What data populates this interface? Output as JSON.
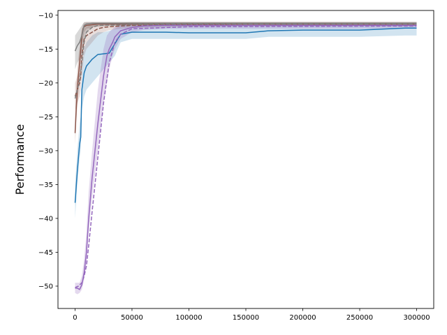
{
  "chart_data": {
    "type": "line",
    "title": "",
    "xlabel": "",
    "ylabel": "Performance",
    "xlim": [
      -15000,
      315000
    ],
    "ylim": [
      -53.3,
      -9.3
    ],
    "xticks": [
      0,
      50000,
      100000,
      150000,
      200000,
      250000,
      300000
    ],
    "xtick_labels": [
      "0",
      "50000",
      "100000",
      "150000",
      "200000",
      "250000",
      "300000"
    ],
    "yticks": [
      -50,
      -45,
      -40,
      -35,
      -30,
      -25,
      -20,
      -15,
      -10
    ],
    "ytick_labels": [
      "−50",
      "−45",
      "−40",
      "−35",
      "−30",
      "−25",
      "−20",
      "−15",
      "−10"
    ],
    "grid": false,
    "legend": "none",
    "series": [
      {
        "color": "#1f77b4",
        "linestyle": "solid",
        "band_opacity": 0.2,
        "x": [
          0,
          2000,
          4000,
          5000,
          6000,
          8000,
          10000,
          15000,
          20000,
          25000,
          30000,
          35000,
          40000,
          50000,
          60000,
          80000,
          100000,
          150000,
          170000,
          200000,
          250000,
          290000,
          300000
        ],
        "y": [
          -37.7,
          -33,
          -29,
          -28,
          -21,
          -18.5,
          -17.5,
          -16.5,
          -15.8,
          -15.7,
          -15.6,
          -14.2,
          -12.8,
          -12.5,
          -12.5,
          -12.5,
          -12.6,
          -12.6,
          -12.3,
          -12.2,
          -12.2,
          -11.9,
          -11.9
        ],
        "lower": [
          -40,
          -35,
          -31,
          -30,
          -24,
          -22,
          -21,
          -20,
          -19,
          -18,
          -17,
          -16,
          -14,
          -13.5,
          -13.5,
          -13.5,
          -13.5,
          -13.5,
          -13.2,
          -13.2,
          -13.2,
          -13,
          -13
        ],
        "upper": [
          -35,
          -30,
          -26,
          -25,
          -18,
          -15,
          -14,
          -13,
          -12.5,
          -12.5,
          -12.3,
          -12,
          -11.5,
          -11.5,
          -11.5,
          -11.5,
          -11.5,
          -11.5,
          -11.4,
          -11.3,
          -11.3,
          -11.2,
          -11.2
        ]
      },
      {
        "color": "#8c564b",
        "linestyle": "solid",
        "band_opacity": 0.25,
        "x": [
          0,
          1000,
          2000,
          3000,
          4000,
          5000,
          6000,
          7000,
          8000,
          10000,
          15000,
          20000,
          30000,
          50000,
          100000,
          150000,
          200000,
          250000,
          300000
        ],
        "y": [
          -27.4,
          -24,
          -21,
          -19,
          -17,
          -15,
          -13,
          -12,
          -11.7,
          -11.5,
          -11.4,
          -11.3,
          -11.3,
          -11.3,
          -11.3,
          -11.3,
          -11.3,
          -11.3,
          -11.3
        ],
        "lower": [
          -29,
          -26,
          -23.5,
          -21.5,
          -19,
          -17,
          -15,
          -13.5,
          -12.5,
          -12,
          -11.8,
          -11.7,
          -11.6,
          -11.6,
          -11.6,
          -11.6,
          -11.6,
          -11.6,
          -11.6
        ],
        "upper": [
          -25,
          -21,
          -18,
          -16,
          -14.5,
          -13,
          -12,
          -11.3,
          -11.1,
          -11,
          -11,
          -11,
          -11,
          -11,
          -11,
          -11,
          -11,
          -11,
          -11
        ]
      },
      {
        "color": "#8c564b",
        "linestyle": "dashed",
        "band_opacity": 0.2,
        "x": [
          0,
          2000,
          4000,
          5000,
          6000,
          8000,
          10000,
          15000,
          20000,
          25000,
          30000,
          40000,
          50000,
          100000,
          150000,
          200000,
          250000,
          300000
        ],
        "y": [
          -22,
          -21,
          -20,
          -19,
          -16,
          -13.5,
          -13,
          -12.5,
          -12,
          -11.8,
          -11.7,
          -11.6,
          -11.5,
          -11.4,
          -11.3,
          -11.3,
          -11.3,
          -11.3
        ],
        "lower": [
          -24,
          -23,
          -22,
          -21,
          -19,
          -16,
          -15,
          -14,
          -13,
          -12.5,
          -12.2,
          -12,
          -11.9,
          -11.7,
          -11.6,
          -11.6,
          -11.6,
          -11.6
        ],
        "upper": [
          -20,
          -19,
          -17.5,
          -16,
          -13.5,
          -12,
          -11.7,
          -11.3,
          -11.2,
          -11.1,
          -11.1,
          -11.1,
          -11,
          -11,
          -11,
          -11,
          -11,
          -11
        ]
      },
      {
        "color": "#7f7f7f",
        "linestyle": "solid",
        "band_opacity": 0.3,
        "x": [
          0,
          2000,
          4000,
          6000,
          8000,
          10000,
          15000,
          20000,
          30000,
          50000,
          100000,
          150000,
          200000,
          250000,
          300000
        ],
        "y": [
          -15.3,
          -14.5,
          -14,
          -13,
          -11.5,
          -11.3,
          -11.2,
          -11.2,
          -11.2,
          -11.2,
          -11.2,
          -11.2,
          -11.2,
          -11.2,
          -11.2
        ],
        "lower": [
          -18,
          -17,
          -16.5,
          -16,
          -14,
          -12.5,
          -11.8,
          -11.6,
          -11.5,
          -11.5,
          -11.5,
          -11.5,
          -11.5,
          -11.5,
          -11.5
        ],
        "upper": [
          -13,
          -12.5,
          -12,
          -11.5,
          -11,
          -11,
          -11,
          -11,
          -11,
          -11,
          -11,
          -11,
          -11,
          -11,
          -11
        ]
      },
      {
        "color": "#7f7f7f",
        "linestyle": "dashed",
        "band_opacity": 0.0,
        "x": [
          0,
          2000,
          4000,
          6000,
          8000,
          10000,
          15000,
          20000,
          50000,
          100000,
          300000
        ],
        "y": [
          -22.3,
          -21,
          -19.5,
          -17,
          -14,
          -12.5,
          -11.8,
          -11.5,
          -11.4,
          -11.3,
          -11.3
        ],
        "lower": [],
        "upper": []
      },
      {
        "color": "#9467bd",
        "linestyle": "solid",
        "band_opacity": 0.25,
        "x": [
          0,
          2000,
          4000,
          6000,
          8000,
          10000,
          12000,
          15000,
          20000,
          25000,
          28000,
          30000,
          33000,
          35000,
          40000,
          50000,
          60000,
          80000,
          100000,
          150000,
          200000,
          250000,
          300000
        ],
        "y": [
          -50.3,
          -50.3,
          -50.5,
          -49.8,
          -48,
          -45,
          -40,
          -34,
          -26,
          -19,
          -16,
          -15,
          -14,
          -13.2,
          -12.3,
          -11.8,
          -11.6,
          -11.5,
          -11.5,
          -11.5,
          -11.5,
          -11.5,
          -11.5
        ],
        "lower": [
          -51,
          -51.2,
          -51,
          -50.5,
          -49,
          -46.5,
          -42,
          -37,
          -30,
          -23,
          -20,
          -18,
          -16,
          -15,
          -13.5,
          -12.5,
          -12.2,
          -12,
          -12,
          -12,
          -12,
          -12,
          -12
        ],
        "upper": [
          -49.5,
          -49.5,
          -49.5,
          -48.5,
          -46,
          -42,
          -36,
          -30,
          -21,
          -15,
          -13,
          -12.5,
          -12,
          -11.7,
          -11.4,
          -11.3,
          -11.2,
          -11.1,
          -11.1,
          -11.1,
          -11.1,
          -11.1,
          -11.1
        ]
      },
      {
        "color": "#9467bd",
        "linestyle": "dashed",
        "band_opacity": 0.0,
        "x": [
          0,
          3000,
          6000,
          8000,
          10000,
          12000,
          15000,
          20000,
          25000,
          30000,
          35000,
          40000,
          50000,
          100000,
          300000
        ],
        "y": [
          -50.2,
          -50,
          -49.5,
          -48.5,
          -47,
          -44,
          -39,
          -31,
          -23,
          -17,
          -14,
          -12.8,
          -12,
          -11.7,
          -11.6
        ],
        "lower": [],
        "upper": []
      }
    ]
  }
}
